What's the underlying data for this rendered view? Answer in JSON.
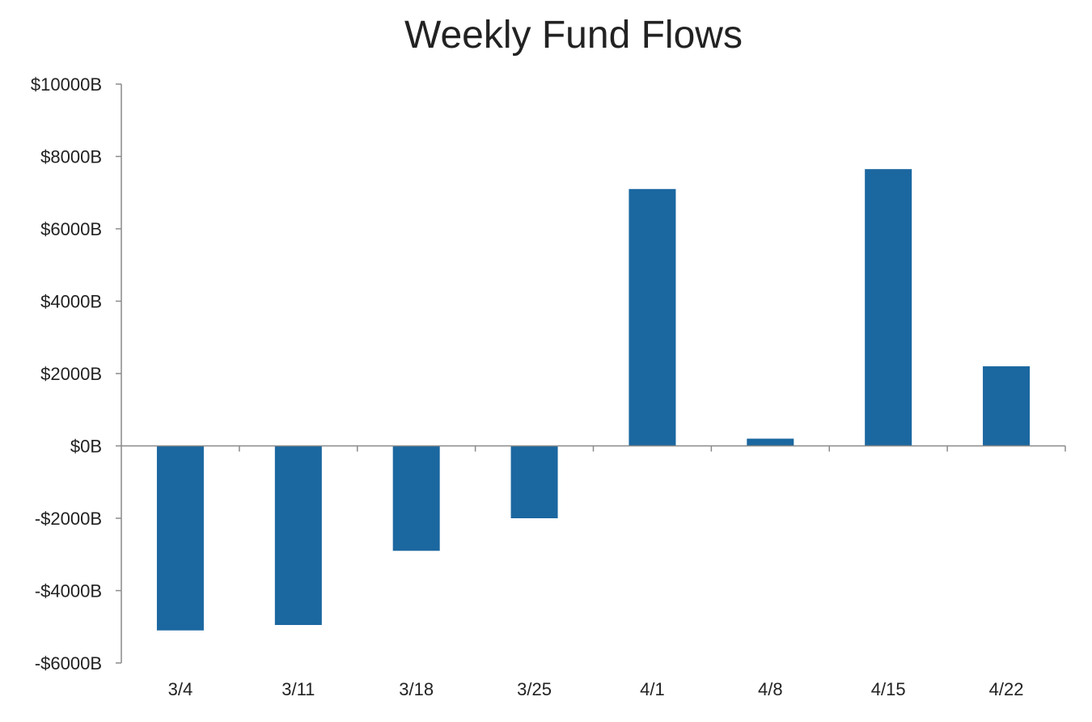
{
  "chart_data": {
    "type": "bar",
    "title": "Weekly Fund Flows",
    "xlabel": "",
    "ylabel": "",
    "categories": [
      "3/4",
      "3/11",
      "3/18",
      "3/25",
      "4/1",
      "4/8",
      "4/15",
      "4/22"
    ],
    "series": [
      {
        "values": [
          -5100,
          -4950,
          -2900,
          -2000,
          7100,
          200,
          7650,
          2200
        ],
        "color": "#1b67a0"
      }
    ],
    "ylim": [
      -6000,
      10000
    ],
    "yticks": [
      10000,
      8000,
      6000,
      4000,
      2000,
      0,
      -2000,
      -4000,
      -6000
    ],
    "ytick_labels": [
      "$10000B",
      "$8000B",
      "$6000B",
      "$4000B",
      "$2000B",
      "$0B",
      "-$2000B",
      "-$4000B",
      "-$6000B"
    ],
    "grid": false,
    "legend": "none",
    "axis_color": "#8a8a8a"
  }
}
